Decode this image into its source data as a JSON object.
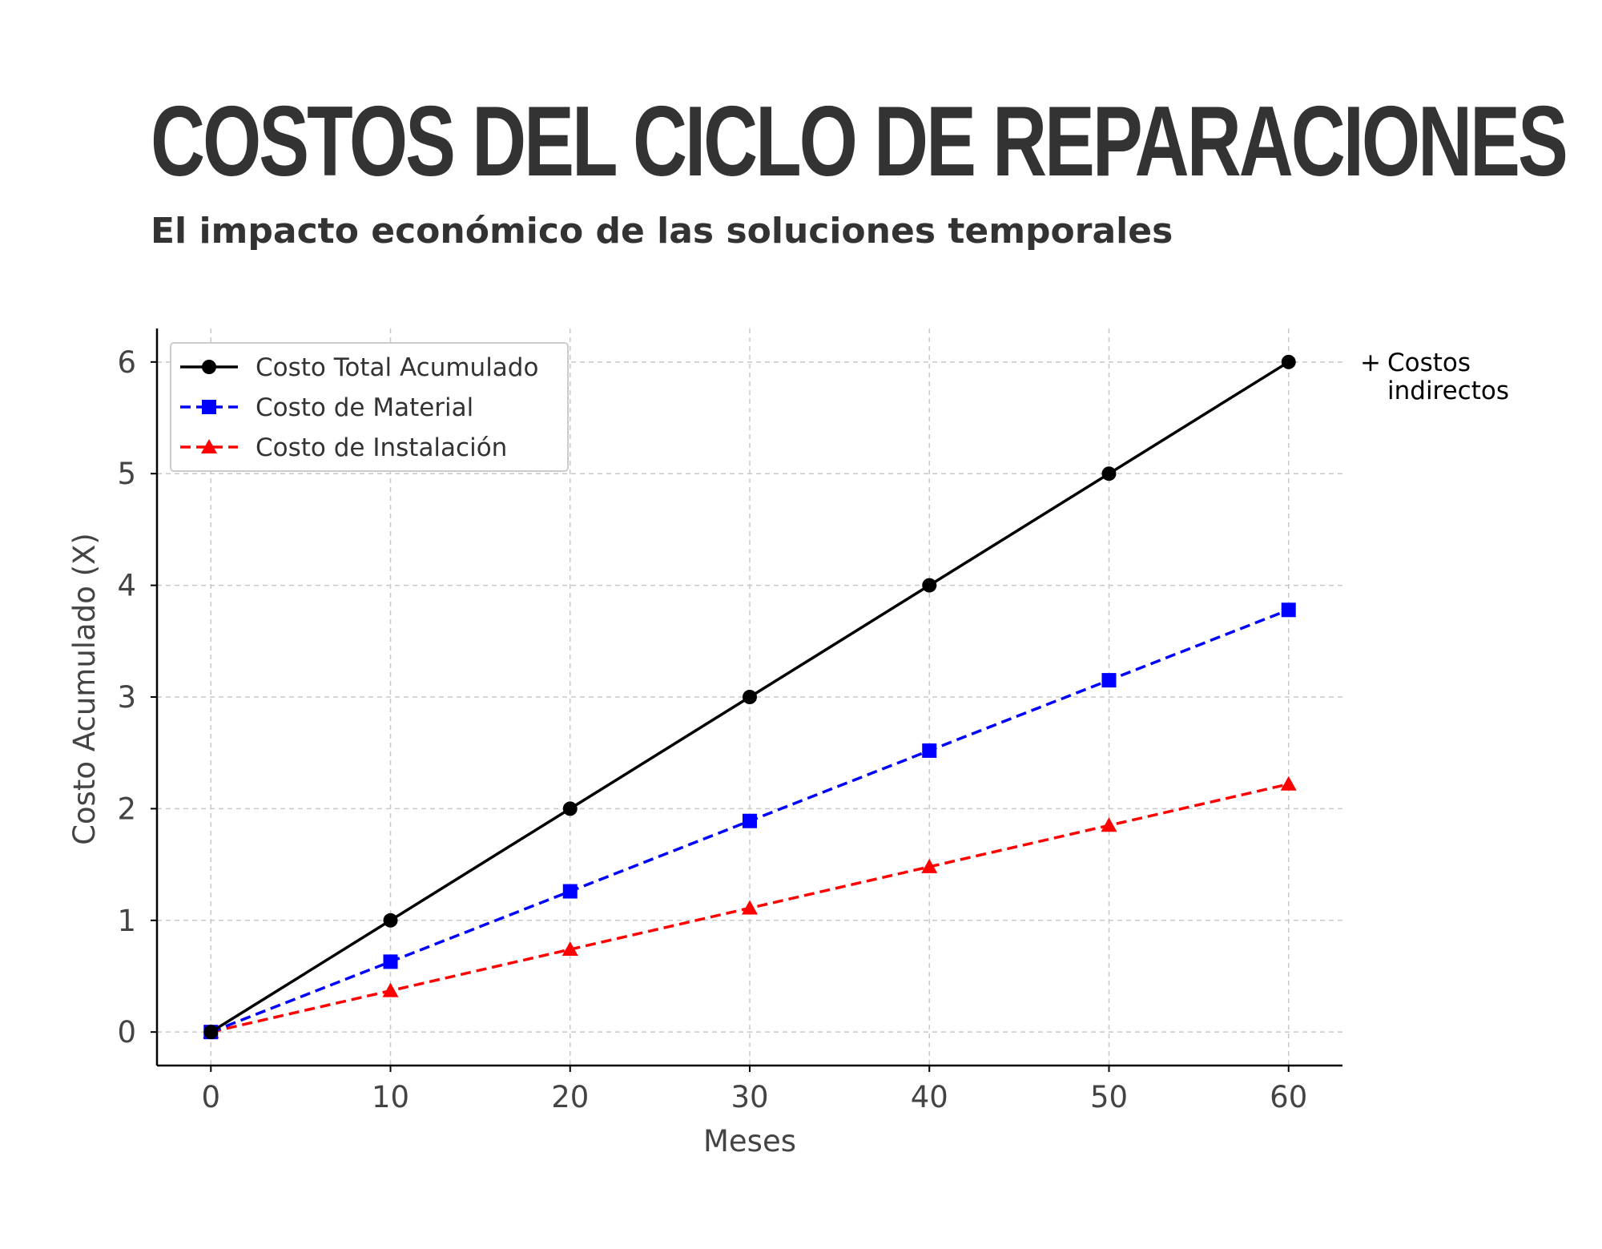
{
  "header": {
    "title": "COSTOS DEL CICLO DE REPARACIONES",
    "subtitle": "El impacto económico de las soluciones temporales"
  },
  "annotation": {
    "symbol": "+",
    "line1": "Costos",
    "line2": "indirectos"
  },
  "chart_data": {
    "type": "line",
    "title": "",
    "xlabel": "Meses",
    "ylabel": "Costo Acumulado (X)",
    "x": [
      0,
      10,
      20,
      30,
      40,
      50,
      60
    ],
    "xticks": [
      0,
      10,
      20,
      30,
      40,
      50,
      60
    ],
    "yticks": [
      0,
      1,
      2,
      3,
      4,
      5,
      6
    ],
    "xlim": [
      -3,
      63
    ],
    "ylim": [
      -0.3,
      6.3
    ],
    "grid": true,
    "legend_position": "top-left",
    "series": [
      {
        "name": "Costo Total Acumulado",
        "color": "#000000",
        "marker": "circle",
        "linestyle": "solid",
        "values": [
          0,
          1,
          2,
          3,
          4,
          5,
          6
        ]
      },
      {
        "name": "Costo de Material",
        "color": "#0000ff",
        "marker": "square",
        "linestyle": "dashed",
        "values": [
          0,
          0.63,
          1.26,
          1.89,
          2.52,
          3.15,
          3.78
        ]
      },
      {
        "name": "Costo de Instalación",
        "color": "#ff0000",
        "marker": "triangle",
        "linestyle": "dashed",
        "values": [
          0,
          0.37,
          0.74,
          1.11,
          1.48,
          1.85,
          2.22
        ]
      }
    ]
  }
}
